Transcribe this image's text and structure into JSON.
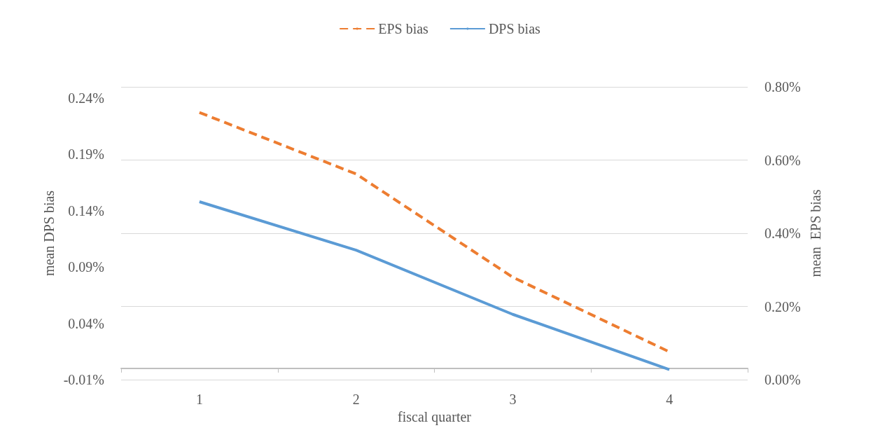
{
  "chart_data": {
    "type": "line",
    "xlabel": "fiscal quarter",
    "ylabel": "mean DPS bias",
    "y2label": "mean  EPS bias",
    "categories": [
      "1",
      "2",
      "3",
      "4"
    ],
    "series": [
      {
        "name": "EPS bias",
        "color": "#ed7d31",
        "axis": "y2",
        "line_style": "dashed",
        "values": [
          0.73,
          0.562,
          0.28,
          0.076
        ]
      },
      {
        "name": "DPS bias",
        "color": "#5b9bd5",
        "line_style": "solid",
        "values": [
          0.148,
          0.105,
          0.048,
          -0.001
        ]
      }
    ],
    "ylim": [
      -0.01,
      0.25
    ],
    "yticks": [
      {
        "value": -0.01,
        "label": "-0.01%"
      },
      {
        "value": 0.04,
        "label": "0.04%"
      },
      {
        "value": 0.09,
        "label": "0.09%"
      },
      {
        "value": 0.14,
        "label": "0.14%"
      },
      {
        "value": 0.19,
        "label": "0.19%"
      },
      {
        "value": 0.24,
        "label": "0.24%"
      }
    ],
    "y2lim": [
      0,
      0.8
    ],
    "y2ticks": [
      {
        "value": 0,
        "label": "0.00%"
      },
      {
        "value": 0.2,
        "label": "0.20%"
      },
      {
        "value": 0.4,
        "label": "0.40%"
      },
      {
        "value": 0.6,
        "label": "0.60%"
      },
      {
        "value": 0.8,
        "label": "0.80%"
      }
    ],
    "grid": "y",
    "legend": "top",
    "marker": "none"
  }
}
